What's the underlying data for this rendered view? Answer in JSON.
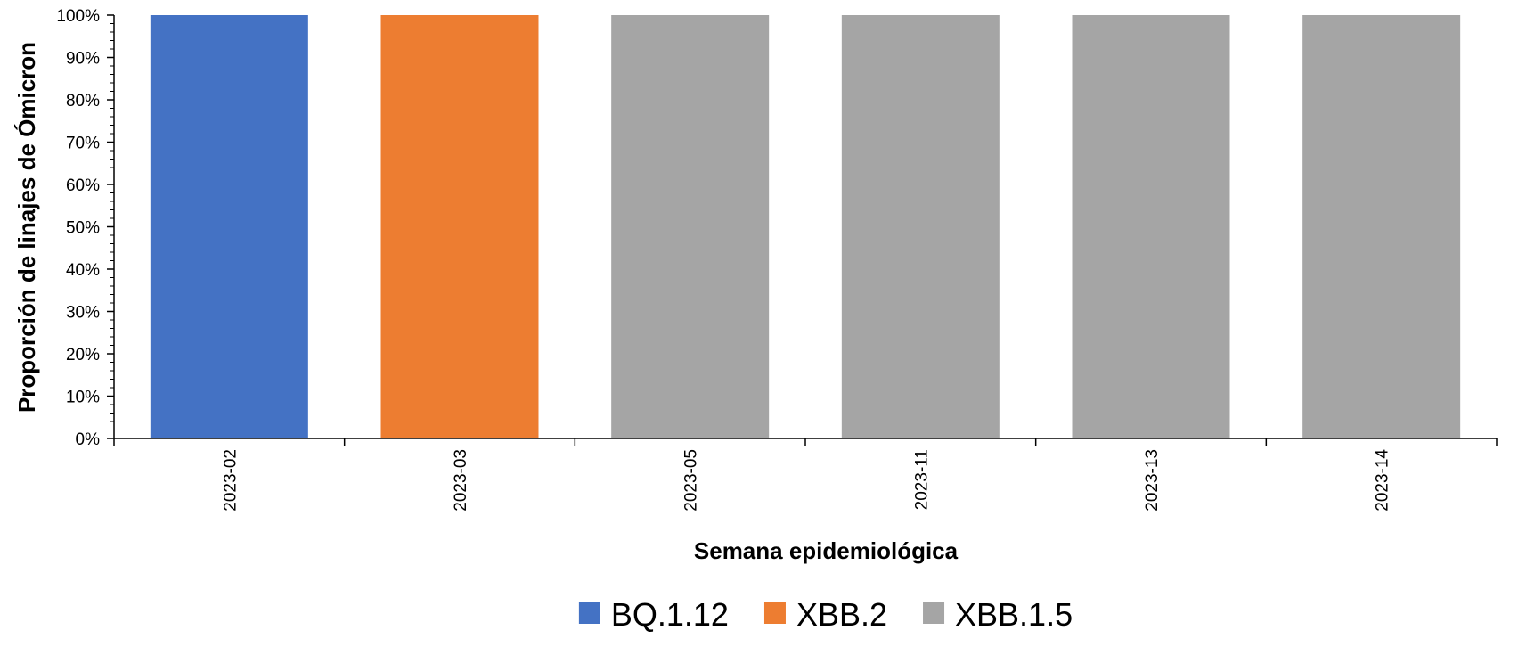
{
  "chart_data": {
    "type": "bar",
    "stacked": true,
    "categories": [
      "2023-02",
      "2023-03",
      "2023-05",
      "2023-11",
      "2023-13",
      "2023-14"
    ],
    "series": [
      {
        "name": "BQ.1.12",
        "color": "#4472C4",
        "values": [
          100,
          0,
          0,
          0,
          0,
          0
        ]
      },
      {
        "name": "XBB.2",
        "color": "#ED7D31",
        "values": [
          0,
          100,
          0,
          0,
          0,
          0
        ]
      },
      {
        "name": "XBB.1.5",
        "color": "#A5A5A5",
        "values": [
          0,
          0,
          100,
          100,
          100,
          100
        ]
      }
    ],
    "xlabel": "Semana epidemiológica",
    "ylabel": "Proporción de linajes de Ómicron",
    "ylim": [
      0,
      100
    ],
    "yticks": [
      "0%",
      "10%",
      "20%",
      "30%",
      "40%",
      "50%",
      "60%",
      "70%",
      "80%",
      "90%",
      "100%"
    ],
    "grid": false,
    "legend_position": "bottom"
  }
}
